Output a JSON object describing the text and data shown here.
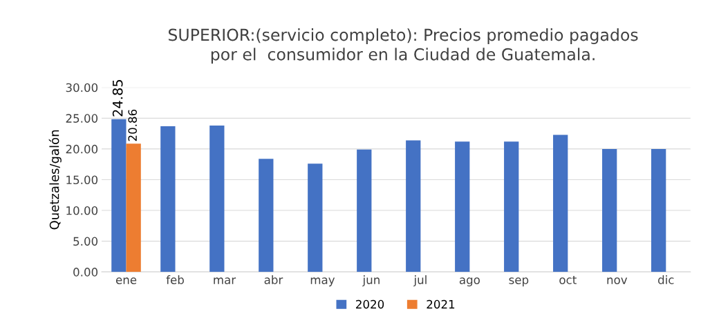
{
  "chart_data": {
    "type": "bar",
    "title": "SUPERIOR:(servicio completo): Precios promedio pagados\npor el  consumidor en la Ciudad de Guatemala.",
    "ylabel": "Quetzales/galón",
    "categories": [
      "ene",
      "feb",
      "mar",
      "abr",
      "may",
      "jun",
      "jul",
      "ago",
      "sep",
      "oct",
      "nov",
      "dic"
    ],
    "series": [
      {
        "name": "2020",
        "color": "#4472c4",
        "values": [
          24.85,
          23.7,
          23.8,
          18.4,
          17.6,
          19.9,
          21.4,
          21.2,
          21.2,
          22.3,
          20.0,
          20.0
        ],
        "value_labels": [
          "24.85",
          null,
          null,
          null,
          null,
          null,
          null,
          null,
          null,
          null,
          null,
          null
        ]
      },
      {
        "name": "2021",
        "color": "#ed7d31",
        "values": [
          20.86,
          null,
          null,
          null,
          null,
          null,
          null,
          null,
          null,
          null,
          null,
          null
        ],
        "value_labels": [
          "20.86",
          null,
          null,
          null,
          null,
          null,
          null,
          null,
          null,
          null,
          null,
          null
        ]
      }
    ],
    "ylim": [
      0,
      30
    ],
    "yticks": [
      {
        "value": 0,
        "label": "0.00"
      },
      {
        "value": 5,
        "label": "5.00"
      },
      {
        "value": 10,
        "label": "10.00"
      },
      {
        "value": 15,
        "label": "15.00"
      },
      {
        "value": 20,
        "label": "20.00"
      },
      {
        "value": 25,
        "label": "25.00"
      },
      {
        "value": 30,
        "label": "30.00"
      }
    ],
    "grid": "y",
    "legend": "bottom"
  }
}
